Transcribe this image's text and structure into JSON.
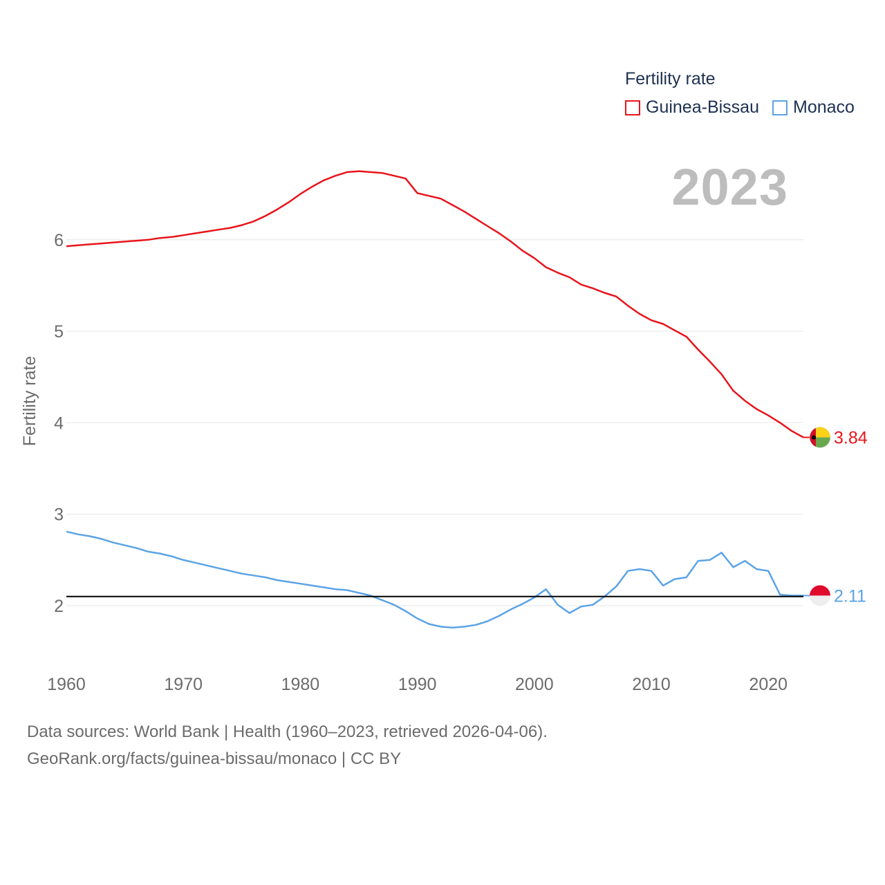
{
  "legend": {
    "title": "Fertility rate",
    "items": [
      {
        "label": "Guinea-Bissau",
        "color": "#e8141b"
      },
      {
        "label": "Monaco",
        "color": "#5ba3e6"
      }
    ]
  },
  "year_label": "2023",
  "footer": {
    "line1": "Data sources: World Bank | Health (1960–2023, retrieved 2026-04-06).",
    "line2": "GeoRank.org/facts/guinea-bissau/monaco | CC BY"
  },
  "chart_data": {
    "type": "line",
    "title": "Fertility rate",
    "xlabel": "",
    "ylabel": "Fertility rate",
    "xlim": [
      1960,
      2023
    ],
    "ylim": [
      1.5,
      7.2
    ],
    "xticks": [
      1960,
      1970,
      1980,
      1990,
      2000,
      2010,
      2020
    ],
    "yticks": [
      2,
      3,
      4,
      5,
      6
    ],
    "grid": true,
    "reference_line": {
      "y": 2.1,
      "color": "#000000"
    },
    "x": [
      1960,
      1961,
      1962,
      1963,
      1964,
      1965,
      1966,
      1967,
      1968,
      1969,
      1970,
      1971,
      1972,
      1973,
      1974,
      1975,
      1976,
      1977,
      1978,
      1979,
      1980,
      1981,
      1982,
      1983,
      1984,
      1985,
      1986,
      1987,
      1988,
      1989,
      1990,
      1991,
      1992,
      1993,
      1994,
      1995,
      1996,
      1997,
      1998,
      1999,
      2000,
      2001,
      2002,
      2003,
      2004,
      2005,
      2006,
      2007,
      2008,
      2009,
      2010,
      2011,
      2012,
      2013,
      2014,
      2015,
      2016,
      2017,
      2018,
      2019,
      2020,
      2021,
      2022,
      2023
    ],
    "series": [
      {
        "name": "Guinea-Bissau",
        "color": "#e8141b",
        "end_label": "3.84",
        "values": [
          5.93,
          5.94,
          5.95,
          5.96,
          5.97,
          5.98,
          5.99,
          6.0,
          6.02,
          6.03,
          6.05,
          6.07,
          6.09,
          6.11,
          6.13,
          6.16,
          6.2,
          6.26,
          6.33,
          6.41,
          6.5,
          6.58,
          6.65,
          6.7,
          6.74,
          6.75,
          6.74,
          6.73,
          6.7,
          6.67,
          6.51,
          6.48,
          6.45,
          6.38,
          6.31,
          6.23,
          6.15,
          6.07,
          5.98,
          5.88,
          5.8,
          5.7,
          5.64,
          5.59,
          5.51,
          5.47,
          5.42,
          5.38,
          5.28,
          5.19,
          5.12,
          5.08,
          5.01,
          4.94,
          4.8,
          4.67,
          4.53,
          4.35,
          4.24,
          4.15,
          4.08,
          4.0,
          3.91,
          3.84
        ]
      },
      {
        "name": "Monaco",
        "color": "#5ba3e6",
        "end_label": "2.11",
        "values": [
          2.81,
          2.78,
          2.76,
          2.73,
          2.69,
          2.66,
          2.63,
          2.59,
          2.57,
          2.54,
          2.5,
          2.47,
          2.44,
          2.41,
          2.38,
          2.35,
          2.33,
          2.31,
          2.28,
          2.26,
          2.24,
          2.22,
          2.2,
          2.18,
          2.17,
          2.14,
          2.11,
          2.06,
          2.01,
          1.94,
          1.86,
          1.8,
          1.77,
          1.76,
          1.77,
          1.79,
          1.83,
          1.89,
          1.96,
          2.02,
          2.09,
          2.18,
          2.01,
          1.92,
          1.99,
          2.01,
          2.1,
          2.21,
          2.38,
          2.4,
          2.38,
          2.22,
          2.29,
          2.31,
          2.49,
          2.5,
          2.58,
          2.42,
          2.49,
          2.4,
          2.38,
          2.12,
          2.11,
          2.11
        ]
      }
    ]
  }
}
